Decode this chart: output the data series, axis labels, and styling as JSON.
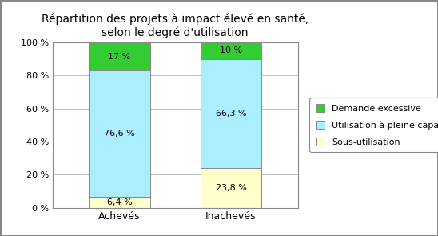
{
  "title": "Répartition des projets à impact élevé en santé,\nselon le degré d'utilisation",
  "categories": [
    "Achevés",
    "Inachevés"
  ],
  "series": {
    "Sous-utilisation": [
      6.4,
      23.8
    ],
    "Utilisation à pleine capacité": [
      76.6,
      66.3
    ],
    "Demande excessive": [
      17.0,
      10.0
    ]
  },
  "colors": {
    "Sous-utilisation": "#FFFFCC",
    "Utilisation à pleine capacité": "#AAEEFF",
    "Demande excessive": "#33CC33"
  },
  "labels": {
    "Sous-utilisation": [
      "6,4 %",
      "23,8 %"
    ],
    "Utilisation à pleine capacité": [
      "76,6 %",
      "66,3 %"
    ],
    "Demande excessive": [
      "17 %",
      "10 %"
    ]
  },
  "ylim": [
    0,
    100
  ],
  "yticks": [
    0,
    20,
    40,
    60,
    80,
    100
  ],
  "ytick_labels": [
    "0 %",
    "20 %",
    "40 %",
    "60 %",
    "80 %",
    "100 %"
  ],
  "background_color": "#FFFFFF",
  "title_fontsize": 10,
  "bar_width": 0.55,
  "legend_order": [
    "Demande excessive",
    "Utilisation à pleine capacité",
    "Sous-utilisation"
  ]
}
